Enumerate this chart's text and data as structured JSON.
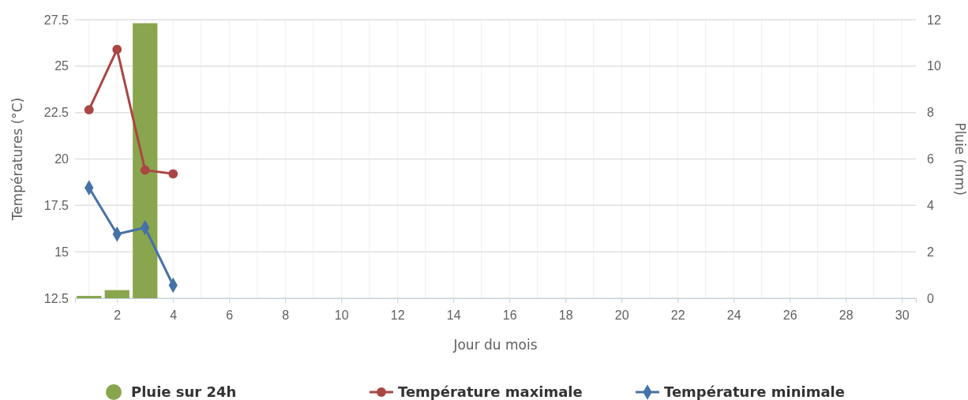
{
  "chart_data": {
    "type": "line",
    "xlabel": "Jour du mois",
    "ylabel": "Températures (°C)",
    "y2label": "Pluie (mm)",
    "x": [
      1,
      2,
      3,
      4
    ],
    "xlim": [
      0.5,
      30.5
    ],
    "xticks": [
      2,
      4,
      6,
      8,
      10,
      12,
      14,
      16,
      18,
      20,
      22,
      24,
      26,
      28,
      30
    ],
    "ylim": [
      12.5,
      27.5
    ],
    "yticks": [
      12.5,
      15,
      17.5,
      20,
      22.5,
      25,
      27.5
    ],
    "y2lim": [
      0,
      12
    ],
    "y2ticks": [
      0,
      2,
      4,
      6,
      8,
      10,
      12
    ],
    "grid": true,
    "legend": "bottom",
    "series": [
      {
        "name": "Pluie sur 24h",
        "type": "bar",
        "axis": "y2",
        "color": "#89a54e",
        "values": [
          0.1,
          0.35,
          11.85,
          null
        ]
      },
      {
        "name": "Température maximale",
        "color": "#aa4643",
        "marker": "circle",
        "values": [
          22.65,
          25.9,
          19.4,
          19.2
        ]
      },
      {
        "name": "Température minimale",
        "color": "#4572a7",
        "marker": "diamond",
        "values": [
          18.45,
          15.95,
          16.3,
          13.2
        ]
      }
    ]
  }
}
